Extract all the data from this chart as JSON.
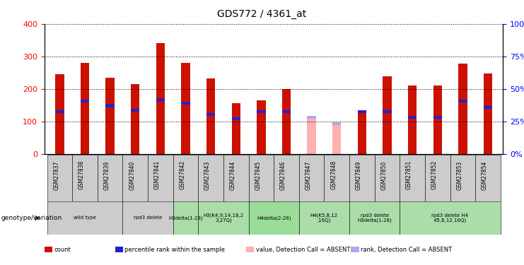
{
  "title": "GDS772 / 4361_at",
  "samples": [
    "GSM27837",
    "GSM27838",
    "GSM27839",
    "GSM27840",
    "GSM27841",
    "GSM27842",
    "GSM27843",
    "GSM27844",
    "GSM27845",
    "GSM27846",
    "GSM27847",
    "GSM27848",
    "GSM27849",
    "GSM27850",
    "GSM27851",
    "GSM27852",
    "GSM27853",
    "GSM27854"
  ],
  "counts": [
    245,
    280,
    235,
    215,
    340,
    280,
    232,
    155,
    165,
    200,
    112,
    92,
    130,
    238,
    210,
    210,
    278,
    247
  ],
  "rank_positions": [
    130,
    163,
    148,
    133,
    167,
    155,
    120,
    108,
    130,
    130,
    112,
    92,
    130,
    130,
    113,
    113,
    163,
    143
  ],
  "absent": [
    false,
    false,
    false,
    false,
    false,
    false,
    false,
    false,
    false,
    false,
    true,
    true,
    false,
    false,
    false,
    false,
    false,
    false
  ],
  "ylim_left": [
    0,
    400
  ],
  "ylim_right": [
    0,
    100
  ],
  "yticks_left": [
    0,
    100,
    200,
    300,
    400
  ],
  "yticks_right": [
    0,
    25,
    50,
    75,
    100
  ],
  "bar_color": "#CC1100",
  "bar_color_absent": "#FFB0B0",
  "rank_color": "#2222CC",
  "rank_color_absent": "#AAAAEE",
  "genotype_groups": [
    {
      "label": "wild type",
      "start": 0,
      "end": 2,
      "color": "#CCCCCC"
    },
    {
      "label": "rpd3 delete",
      "start": 3,
      "end": 4,
      "color": "#CCCCCC"
    },
    {
      "label": "H3delta(1-28)",
      "start": 5,
      "end": 5,
      "color": "#AADDAA"
    },
    {
      "label": "H3(K4,9,14,18,2\n3,27Q)",
      "start": 6,
      "end": 7,
      "color": "#AADDAA"
    },
    {
      "label": "H4delta(2-26)",
      "start": 8,
      "end": 9,
      "color": "#99DD99"
    },
    {
      "label": "H4(K5,8,12\n,16Q)",
      "start": 10,
      "end": 11,
      "color": "#AADDAA"
    },
    {
      "label": "rpd3 delete\nH3delta(1-28)",
      "start": 12,
      "end": 13,
      "color": "#AADDAA"
    },
    {
      "label": "rpd3 delete H4\nK5,8,12,16Q)",
      "start": 14,
      "end": 17,
      "color": "#AADDAA"
    }
  ],
  "legend_items": [
    {
      "label": "count",
      "color": "#CC1100"
    },
    {
      "label": "percentile rank within the sample",
      "color": "#2222CC"
    },
    {
      "label": "value, Detection Call = ABSENT",
      "color": "#FFB0B0"
    },
    {
      "label": "rank, Detection Call = ABSENT",
      "color": "#AAAAEE"
    }
  ]
}
